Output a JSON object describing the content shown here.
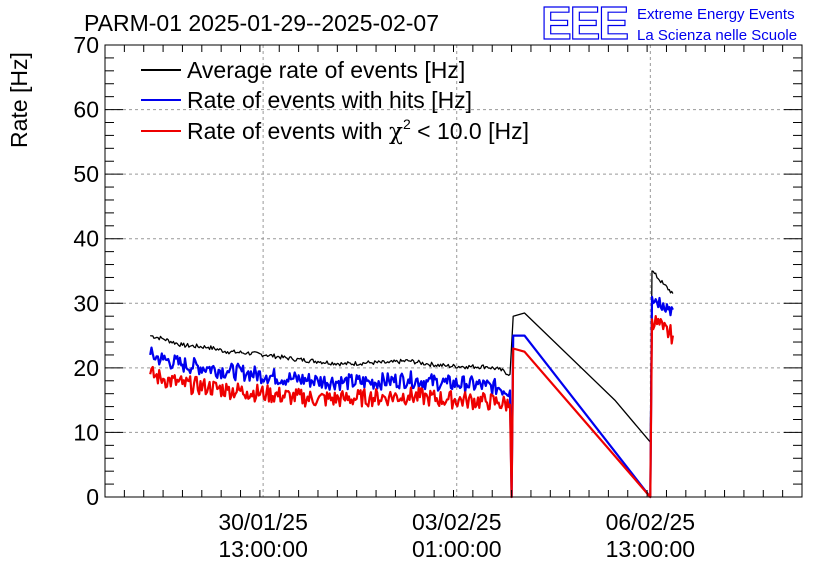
{
  "header": {
    "title": "PARM-01 2025-01-29--2025-02-07",
    "logo_text": "EEE",
    "brand_line1": "Extreme Energy Events",
    "brand_line2": "La Scienza nelle Scuole"
  },
  "colors": {
    "avg": "#000000",
    "hits": "#0000ee",
    "chi2": "#ee0000",
    "logo": "#0000ee"
  },
  "chart_data": {
    "type": "line",
    "title": "PARM-01 2025-01-29--2025-02-07",
    "xlabel": "",
    "ylabel": "Rate [Hz]",
    "x_unit": "hours since 2025-01-29 00:00",
    "xlim": [
      12.0,
      228.0
    ],
    "ylim": [
      0,
      70
    ],
    "yticks": [
      0,
      10,
      20,
      30,
      40,
      50,
      60,
      70
    ],
    "xticks": [
      {
        "x": 61,
        "line1": "30/01/25",
        "line2": "13:00:00"
      },
      {
        "x": 121,
        "line1": "03/02/25",
        "line2": "01:00:00"
      },
      {
        "x": 181,
        "line1": "06/02/25",
        "line2": "13:00:00"
      }
    ],
    "grid": true,
    "legend_position": "top-left",
    "legend": [
      {
        "key": "avg",
        "label": "Average rate of events [Hz]"
      },
      {
        "key": "hits",
        "label": "Rate of events with hits [Hz]"
      },
      {
        "key": "chi2",
        "label_prefix": "Rate of events with ",
        "label_symbol": "χ",
        "label_sup": "2",
        "label_suffix": " < 10.0 [Hz]"
      }
    ],
    "series": [
      {
        "key": "avg",
        "name": "Average rate of events [Hz]",
        "x": [
          26,
          30,
          36,
          44,
          50,
          56,
          62,
          70,
          78,
          86,
          94,
          100,
          106,
          112,
          118,
          124,
          130,
          134,
          137.5,
          138.5,
          142,
          170,
          181,
          181.5,
          185,
          188
        ],
        "y": [
          25,
          24.5,
          23.5,
          23.2,
          22.5,
          22.3,
          22,
          21.4,
          21,
          20.6,
          20.8,
          20.8,
          21.1,
          20.6,
          20.3,
          20.2,
          20.2,
          19.8,
          19,
          28,
          28.5,
          15,
          8.5,
          35,
          33,
          31.5
        ]
      },
      {
        "key": "hits",
        "name": "Rate of events with hits [Hz]",
        "x": [
          26,
          30,
          36,
          44,
          50,
          56,
          62,
          70,
          78,
          86,
          94,
          100,
          106,
          112,
          118,
          124,
          130,
          134,
          137.5,
          138,
          138.5,
          142,
          181,
          181.5,
          185,
          188
        ],
        "y": [
          22,
          21.3,
          20.5,
          20,
          19.5,
          19.2,
          18.8,
          18.3,
          18,
          17.8,
          17.8,
          18,
          18.2,
          17.9,
          17.6,
          17.5,
          17.2,
          16.9,
          16.5,
          0,
          25,
          25,
          0,
          31,
          30,
          29
        ]
      },
      {
        "key": "chi2",
        "name": "Rate of events with χ2 < 10.0 [Hz]",
        "x": [
          26,
          30,
          36,
          44,
          50,
          56,
          62,
          70,
          78,
          86,
          94,
          100,
          106,
          112,
          118,
          124,
          130,
          134,
          137.5,
          138,
          138.5,
          142,
          181,
          181.5,
          185,
          188
        ],
        "y": [
          19,
          18.3,
          17.5,
          17,
          16.6,
          16.3,
          16,
          15.5,
          15.2,
          15.2,
          15.4,
          15.5,
          15.7,
          15.4,
          15.1,
          15,
          14.8,
          14.6,
          14.3,
          0,
          23,
          22.5,
          0,
          27.5,
          26,
          25
        ]
      }
    ]
  }
}
